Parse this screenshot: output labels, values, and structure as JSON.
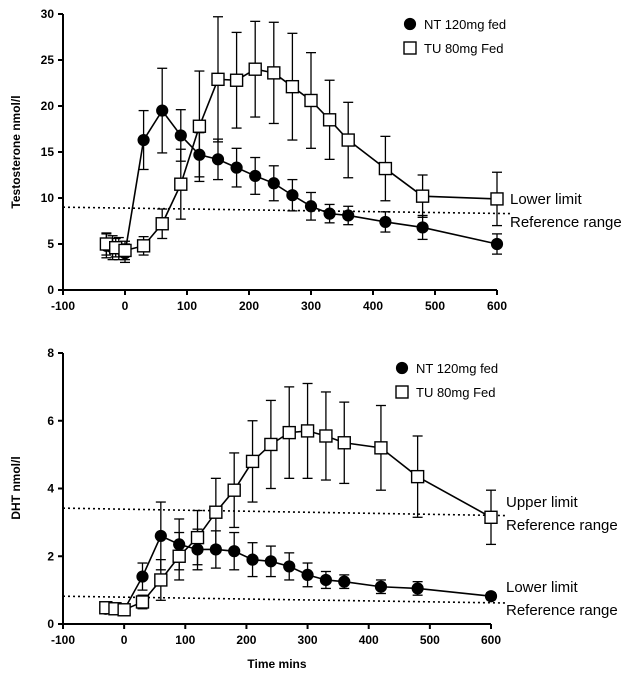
{
  "chart_data": [
    {
      "type": "line",
      "ylabel": "Testosterone nmol/l",
      "xlabel": "",
      "xlim": [
        -100,
        600
      ],
      "ylim": [
        0,
        30
      ],
      "xticks": [
        -100,
        0,
        100,
        200,
        300,
        400,
        500,
        600
      ],
      "yticks": [
        0,
        5,
        10,
        15,
        20,
        25,
        30
      ],
      "legend": "top-right",
      "grid": false,
      "series": [
        {
          "name": "NT 120mg fed",
          "marker": "filled-circle",
          "x": [
            -30,
            -20,
            -10,
            0,
            30,
            60,
            90,
            120,
            150,
            180,
            210,
            240,
            270,
            300,
            330,
            360,
            420,
            480,
            600
          ],
          "y": [
            4.8,
            4.6,
            4.5,
            4.0,
            16.3,
            19.5,
            16.8,
            14.7,
            14.2,
            13.3,
            12.4,
            11.6,
            10.3,
            9.1,
            8.3,
            8.1,
            7.4,
            6.8,
            5.0
          ],
          "err": [
            1.3,
            1.3,
            1.2,
            1.0,
            3.2,
            4.6,
            2.8,
            2.4,
            2.2,
            2.1,
            2.0,
            1.9,
            1.7,
            1.5,
            1.0,
            1.0,
            1.1,
            1.3,
            1.1
          ]
        },
        {
          "name": "TU 80mg Fed",
          "marker": "open-square",
          "x": [
            -30,
            -15,
            0,
            30,
            60,
            90,
            120,
            150,
            180,
            210,
            240,
            270,
            300,
            330,
            360,
            420,
            480,
            600
          ],
          "y": [
            5.0,
            4.6,
            4.3,
            4.8,
            7.2,
            11.5,
            17.8,
            22.9,
            22.8,
            24.0,
            23.6,
            22.1,
            20.6,
            18.5,
            16.3,
            13.2,
            10.2,
            9.9
          ],
          "err": [
            1.2,
            1.0,
            1.0,
            1.0,
            1.6,
            3.8,
            6.0,
            6.8,
            5.2,
            5.2,
            5.5,
            5.8,
            5.2,
            4.3,
            4.1,
            3.5,
            2.3,
            2.9
          ]
        }
      ],
      "reference_lines": [
        {
          "label_line1": "Lower limit",
          "label_line2": "Reference range",
          "y_start": 9.0,
          "y_end": 8.3
        }
      ]
    },
    {
      "type": "line",
      "ylabel": "DHT nmol/l",
      "xlabel": "Time mins",
      "xlim": [
        -100,
        600
      ],
      "ylim": [
        0,
        8
      ],
      "xticks": [
        -100,
        0,
        100,
        200,
        300,
        400,
        500,
        600
      ],
      "yticks": [
        0,
        2,
        4,
        6,
        8
      ],
      "legend": "top-right",
      "grid": false,
      "series": [
        {
          "name": "NT 120mg fed",
          "marker": "filled-circle",
          "x": [
            -30,
            -20,
            -10,
            0,
            30,
            60,
            90,
            120,
            150,
            180,
            210,
            240,
            270,
            300,
            330,
            360,
            420,
            480,
            600
          ],
          "y": [
            0.45,
            0.45,
            0.45,
            0.42,
            1.4,
            2.6,
            2.35,
            2.2,
            2.2,
            2.15,
            1.9,
            1.85,
            1.7,
            1.45,
            1.3,
            1.25,
            1.1,
            1.05,
            0.82
          ],
          "err": [
            0.12,
            0.12,
            0.12,
            0.1,
            0.4,
            1.0,
            0.75,
            0.6,
            0.55,
            0.55,
            0.5,
            0.45,
            0.4,
            0.35,
            0.25,
            0.2,
            0.2,
            0.2,
            0.1
          ]
        },
        {
          "name": "TU 80mg Fed",
          "marker": "open-square",
          "x": [
            -30,
            -15,
            0,
            30,
            60,
            90,
            120,
            150,
            180,
            210,
            240,
            270,
            300,
            330,
            360,
            420,
            480,
            600
          ],
          "y": [
            0.48,
            0.45,
            0.42,
            0.65,
            1.3,
            2.0,
            2.55,
            3.3,
            3.95,
            4.8,
            5.3,
            5.65,
            5.7,
            5.55,
            5.35,
            5.2,
            4.35,
            3.15
          ],
          "err": [
            0.15,
            0.12,
            0.1,
            0.2,
            0.6,
            0.7,
            0.8,
            1.0,
            1.1,
            1.2,
            1.3,
            1.35,
            1.4,
            1.3,
            1.2,
            1.25,
            1.2,
            0.8
          ]
        }
      ],
      "reference_lines": [
        {
          "label_line1": "Upper limit",
          "label_line2": "Reference range",
          "y_start": 3.42,
          "y_end": 3.2
        },
        {
          "label_line1": "Lower limit",
          "label_line2": "Reference range",
          "y_start": 0.82,
          "y_end": 0.62
        }
      ]
    }
  ]
}
